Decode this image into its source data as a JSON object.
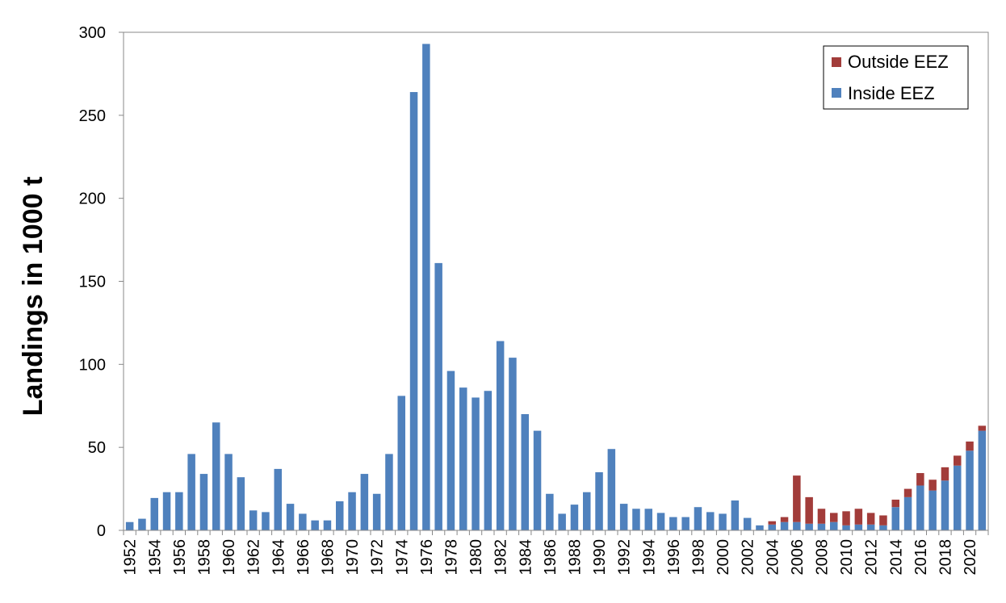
{
  "chart_data": {
    "type": "bar",
    "stacked": true,
    "title": "",
    "xlabel": "",
    "ylabel": "Landings in 1000 t",
    "ylim": [
      0,
      300
    ],
    "yticks": [
      0,
      50,
      100,
      150,
      200,
      250,
      300
    ],
    "grid": false,
    "legend_position": "top-right",
    "categories": [
      "1952",
      "1953",
      "1954",
      "1955",
      "1956",
      "1957",
      "1958",
      "1959",
      "1960",
      "1961",
      "1962",
      "1963",
      "1964",
      "1965",
      "1966",
      "1967",
      "1968",
      "1969",
      "1970",
      "1971",
      "1972",
      "1973",
      "1974",
      "1975",
      "1976",
      "1977",
      "1978",
      "1979",
      "1980",
      "1981",
      "1982",
      "1983",
      "1984",
      "1985",
      "1986",
      "1987",
      "1988",
      "1989",
      "1990",
      "1991",
      "1992",
      "1993",
      "1994",
      "1995",
      "1996",
      "1997",
      "1998",
      "1999",
      "2000",
      "2001",
      "2002",
      "2003",
      "2004",
      "2005",
      "2006",
      "2007",
      "2008",
      "2009",
      "2010",
      "2011",
      "2012",
      "2013",
      "2014",
      "2015",
      "2016",
      "2017",
      "2018",
      "2019",
      "2020",
      "2021"
    ],
    "tick_labels": [
      "1952",
      "1954",
      "1956",
      "1958",
      "1960",
      "1962",
      "1964",
      "1966",
      "1968",
      "1970",
      "1972",
      "1974",
      "1976",
      "1978",
      "1980",
      "1982",
      "1984",
      "1986",
      "1988",
      "1990",
      "1992",
      "1994",
      "1996",
      "1998",
      "2000",
      "2002",
      "2004",
      "2006",
      "2008",
      "2010",
      "2012",
      "2014",
      "2016",
      "2018",
      "2020"
    ],
    "series": [
      {
        "name": "Inside EEZ",
        "color": "#4f81bd",
        "values": [
          5,
          7,
          19.5,
          23,
          23,
          46,
          34,
          65,
          46,
          32,
          12,
          11,
          37,
          16,
          10,
          6,
          6,
          17.5,
          23,
          34,
          22,
          46,
          81,
          264,
          293,
          161,
          96,
          86,
          80,
          84,
          114,
          104,
          70,
          60,
          22,
          10,
          15.5,
          23,
          35,
          49,
          16,
          13,
          13,
          10.5,
          8,
          8,
          14,
          11,
          10,
          18,
          7.5,
          3,
          3.5,
          5,
          5,
          4,
          4,
          5,
          3,
          3.5,
          3.5,
          3,
          14,
          20,
          27,
          24,
          30,
          39,
          48,
          60
        ]
      },
      {
        "name": "Outside EEZ",
        "color": "#a23c3a",
        "values": [
          0,
          0,
          0,
          0,
          0,
          0,
          0,
          0,
          0,
          0,
          0,
          0,
          0,
          0,
          0,
          0,
          0,
          0,
          0,
          0,
          0,
          0,
          0,
          0,
          0,
          0,
          0,
          0,
          0,
          0,
          0,
          0,
          0,
          0,
          0,
          0,
          0,
          0,
          0,
          0,
          0,
          0,
          0,
          0,
          0,
          0,
          0,
          0,
          0,
          0,
          0,
          0,
          2,
          3,
          28,
          16,
          9,
          5.5,
          8.5,
          9.5,
          7,
          6,
          4.5,
          5,
          7.5,
          6.5,
          8,
          6,
          5.5,
          3
        ]
      }
    ]
  }
}
